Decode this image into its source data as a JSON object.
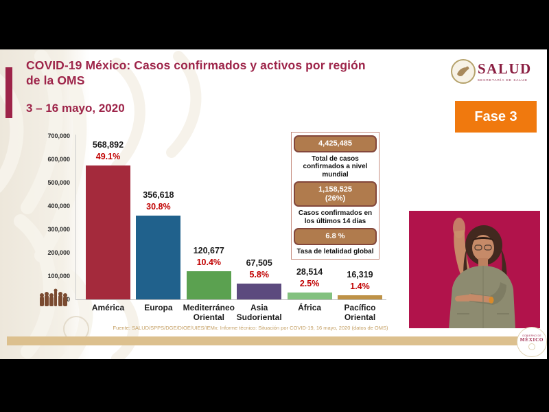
{
  "header": {
    "title_line1": "COVID-19 México: Casos confirmados y activos por región",
    "title_line2": "de la OMS",
    "date_range": "3 – 16 mayo, 2020",
    "phase_badge": "Fase 3",
    "logo_word": "SALUD",
    "logo_subtitle": "SECRETARÍA DE SALUD"
  },
  "chart_data": {
    "type": "bar",
    "title": "Casos confirmados y activos por región de la OMS",
    "categories": [
      "América",
      "Europa",
      "Mediterráneo Oriental",
      "Asia Sudoriental",
      "África",
      "Pacífico Oriental"
    ],
    "values": [
      568892,
      356618,
      120677,
      67505,
      28514,
      16319
    ],
    "value_labels": [
      "568,892",
      "356,618",
      "120,677",
      "67,505",
      "28,514",
      "16,319"
    ],
    "pct_values": [
      49.1,
      30.8,
      10.4,
      5.8,
      2.5,
      1.4
    ],
    "pct_labels": [
      "49.1%",
      "30.8%",
      "10.4%",
      "5.8%",
      "2.5%",
      "1.4%"
    ],
    "bar_colors": [
      "#A42A3C",
      "#20618C",
      "#5BA150",
      "#5C4A7E",
      "#83C17F",
      "#BE9247"
    ],
    "ylim": [
      0,
      700000
    ],
    "ytick_labels": [
      "0",
      "100,000",
      "200,000",
      "300,000",
      "400,000",
      "500,000",
      "600,000",
      "700,000"
    ],
    "grid": false,
    "legend": "none"
  },
  "stats_panel": {
    "items": [
      {
        "value": "4,425,485",
        "value2": "",
        "label": "Total de casos confirmados a nivel mundial"
      },
      {
        "value": "1,158,525",
        "value2": "(26%)",
        "label": "Casos confirmados en los últimos 14 días"
      },
      {
        "value": "6.8 %",
        "value2": "",
        "label": "Tasa de letalidad global"
      }
    ]
  },
  "footer": {
    "source": "Fuente: SALUD/SPPS/DGE/DIOE/UIES/IEMx: Informe técnico: Situación por COVID-19, 16 mayo, 2020 (datos de OMS)",
    "gov_badge_top": "GOBIERNO DE",
    "gov_badge_word": "MÉXICO"
  },
  "colors": {
    "maroon": "#9D2449",
    "phase_orange": "#F0790E",
    "pct_red": "#C00000",
    "pill_tan": "#B07B4D",
    "pill_border": "#83473B",
    "panel_border": "#C4897B",
    "gold_bar": "#DCC08E",
    "footer_text": "#C49F63",
    "interpreter_bg": "#B1134B",
    "watermark_beige": "#EDE7DB"
  }
}
